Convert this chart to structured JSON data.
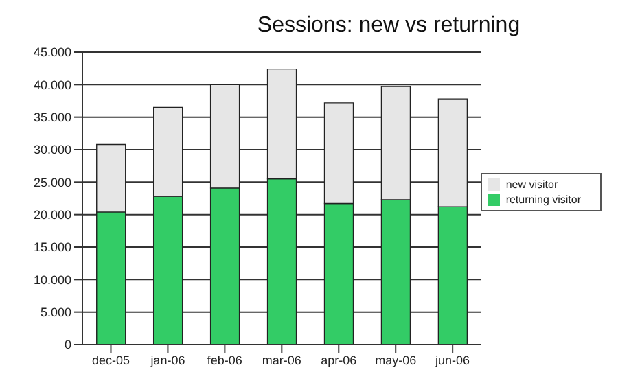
{
  "chart_data": {
    "type": "bar",
    "title": "Sessions: new vs returning",
    "categories": [
      "dec-05",
      "jan-06",
      "feb-06",
      "mar-06",
      "apr-06",
      "may-06",
      "jun-06"
    ],
    "stacked": true,
    "series": [
      {
        "name": "returning visitor",
        "color": "#33cc66",
        "values": [
          20400,
          22800,
          24100,
          25500,
          21700,
          22300,
          21200
        ]
      },
      {
        "name": "new visitor",
        "color": "#e6e6e6",
        "values": [
          10400,
          13700,
          15900,
          16900,
          15500,
          17400,
          16600
        ]
      }
    ],
    "ylim": [
      0,
      45000
    ],
    "yticks": [
      {
        "value": 0,
        "label": "0"
      },
      {
        "value": 5000,
        "label": "5.000"
      },
      {
        "value": 10000,
        "label": "10.000"
      },
      {
        "value": 15000,
        "label": "15.000"
      },
      {
        "value": 20000,
        "label": "20.000"
      },
      {
        "value": 25000,
        "label": "25.000"
      },
      {
        "value": 30000,
        "label": "30.000"
      },
      {
        "value": 35000,
        "label": "35.000"
      },
      {
        "value": 40000,
        "label": "40.000"
      },
      {
        "value": 45000,
        "label": "45.000"
      }
    ],
    "grid": "y",
    "legend": "right"
  }
}
